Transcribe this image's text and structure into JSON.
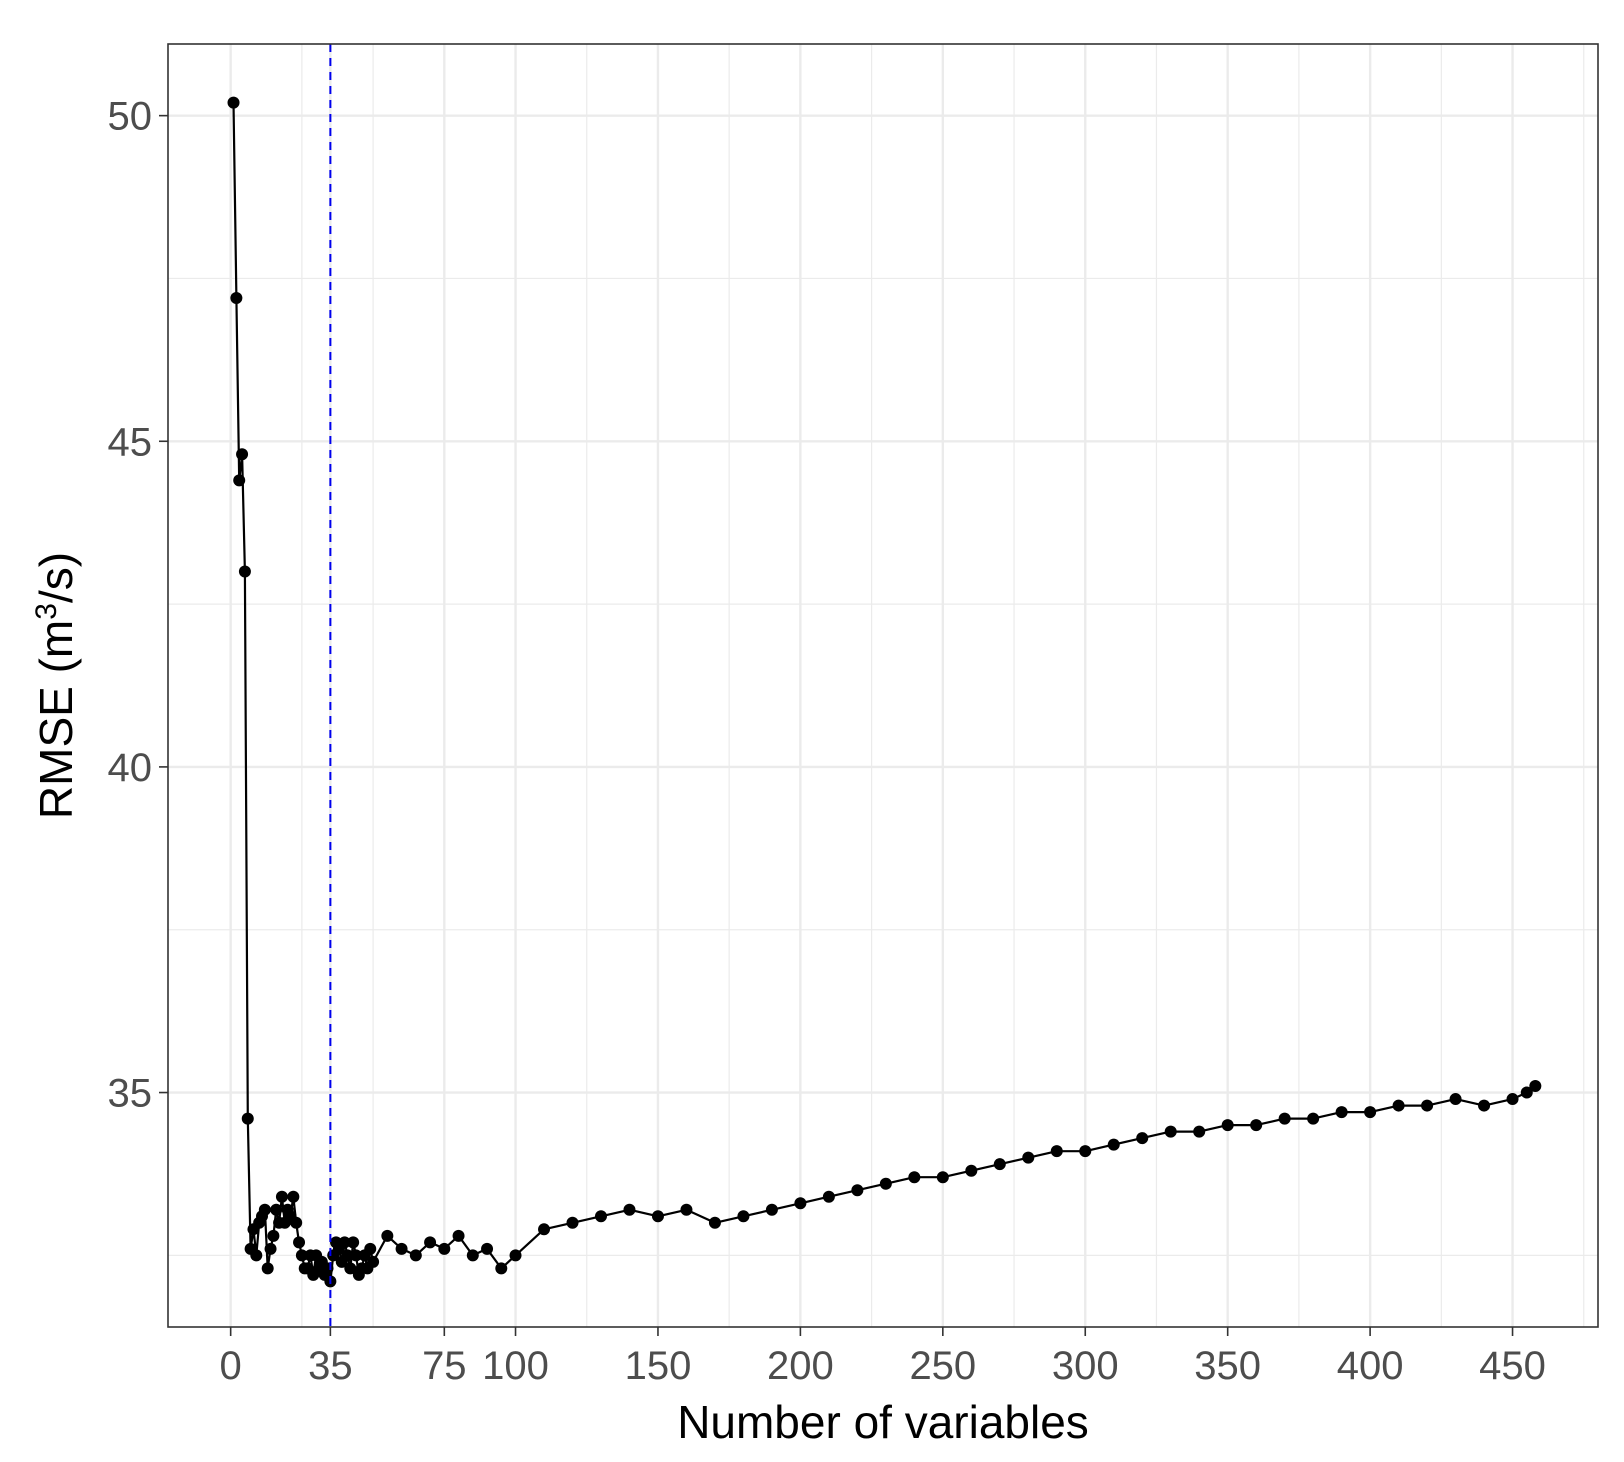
{
  "chart_data": {
    "type": "line",
    "xlabel": "Number of variables",
    "ylabel_main": "RMSE (m",
    "ylabel_sup": "3",
    "ylabel_end": "/s)",
    "xlim": [
      -22,
      480
    ],
    "ylim": [
      31.4,
      51.1
    ],
    "x_ticks": [
      {
        "value": 0,
        "label": "0"
      },
      {
        "value": 35,
        "label": "35"
      },
      {
        "value": 75,
        "label": "75"
      },
      {
        "value": 100,
        "label": "100"
      },
      {
        "value": 150,
        "label": "150"
      },
      {
        "value": 200,
        "label": "200"
      },
      {
        "value": 250,
        "label": "250"
      },
      {
        "value": 300,
        "label": "300"
      },
      {
        "value": 350,
        "label": "350"
      },
      {
        "value": 400,
        "label": "400"
      },
      {
        "value": 450,
        "label": "450"
      }
    ],
    "x_minor_ticks": [
      -25,
      25,
      50,
      125,
      175,
      225,
      275,
      325,
      375,
      425,
      475
    ],
    "y_ticks": [
      {
        "value": 35,
        "label": "35"
      },
      {
        "value": 40,
        "label": "40"
      },
      {
        "value": 45,
        "label": "45"
      },
      {
        "value": 50,
        "label": "50"
      }
    ],
    "y_minor_ticks": [
      32.5,
      37.5,
      42.5,
      47.5
    ],
    "vline": {
      "x": 35,
      "color": "#0000ee",
      "style": "dashed"
    },
    "grid": true,
    "colors": {
      "series": "#000000",
      "grid": "#ebebeb",
      "panel_border": "#333333"
    },
    "series": [
      {
        "x": [
          1,
          2,
          3,
          4,
          5,
          6,
          7,
          8,
          9,
          10,
          11,
          12,
          13,
          14,
          15,
          16,
          17,
          18,
          19,
          20,
          21,
          22,
          23,
          24,
          25,
          26,
          27,
          28,
          29,
          30,
          31,
          32,
          33,
          34,
          35,
          36,
          37,
          38,
          39,
          40,
          41,
          42,
          43,
          44,
          45,
          46,
          47,
          48,
          49,
          50,
          55,
          60,
          65,
          70,
          75,
          80,
          85,
          90,
          95,
          100,
          110,
          120,
          130,
          140,
          150,
          160,
          170,
          180,
          190,
          200,
          210,
          220,
          230,
          240,
          250,
          260,
          270,
          280,
          290,
          300,
          310,
          320,
          330,
          340,
          350,
          360,
          370,
          380,
          390,
          400,
          410,
          420,
          430,
          440,
          450,
          455,
          458
        ],
        "y": [
          50.2,
          47.2,
          44.4,
          44.8,
          43.0,
          34.6,
          32.6,
          32.9,
          32.5,
          33.0,
          33.1,
          33.2,
          32.3,
          32.6,
          32.8,
          33.2,
          33.0,
          33.4,
          33.0,
          33.2,
          33.1,
          33.4,
          33.0,
          32.7,
          32.5,
          32.3,
          32.3,
          32.5,
          32.2,
          32.5,
          32.3,
          32.4,
          32.2,
          32.3,
          32.1,
          32.5,
          32.7,
          32.6,
          32.4,
          32.7,
          32.5,
          32.3,
          32.7,
          32.5,
          32.2,
          32.3,
          32.5,
          32.3,
          32.6,
          32.4,
          32.8,
          32.6,
          32.5,
          32.7,
          32.6,
          32.8,
          32.5,
          32.6,
          32.3,
          32.5,
          32.9,
          33.0,
          33.1,
          33.2,
          33.1,
          33.2,
          33.0,
          33.1,
          33.2,
          33.3,
          33.4,
          33.5,
          33.6,
          33.7,
          33.7,
          33.8,
          33.9,
          34.0,
          34.1,
          34.1,
          34.2,
          34.3,
          34.4,
          34.4,
          34.5,
          34.5,
          34.6,
          34.6,
          34.7,
          34.7,
          34.8,
          34.8,
          34.9,
          34.8,
          34.9,
          35.0,
          35.1
        ]
      }
    ]
  }
}
